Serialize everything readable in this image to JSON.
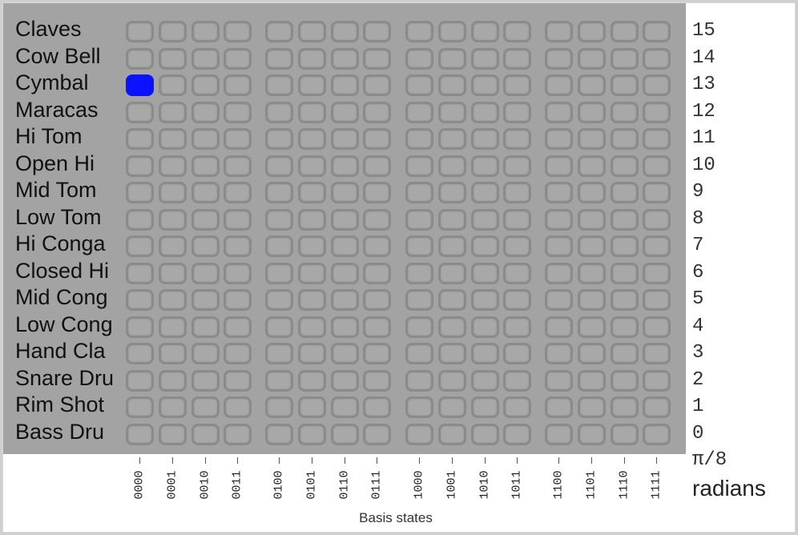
{
  "instruments": [
    "Claves",
    "Cow Bell",
    "Cymbal",
    "Maracas",
    "Hi Tom",
    "Open Hi",
    "Mid Tom",
    "Low Tom",
    "Hi Conga",
    "Closed Hi",
    "Mid Cong",
    "Low Cong",
    "Hand Cla",
    "Snare Dru",
    "Rim Shot",
    "Bass Dru"
  ],
  "row_values": [
    "15",
    "14",
    "13",
    "12",
    "11",
    "10",
    "9",
    "8",
    "7",
    "6",
    "5",
    "4",
    "3",
    "2",
    "1",
    "0"
  ],
  "basis_states": [
    "0000",
    "0001",
    "0010",
    "0011",
    "0100",
    "0101",
    "0110",
    "0111",
    "1000",
    "1001",
    "1010",
    "1011",
    "1100",
    "1101",
    "1110",
    "1111"
  ],
  "active_cells": [
    {
      "row": 2,
      "col": 0
    }
  ],
  "pi_fraction": "π/8",
  "units": "radians",
  "x_axis_title": "Basis states",
  "colors": {
    "active": "#0a12ff",
    "panel": "#a3a3a3",
    "cell_border": "#8b8b8b"
  }
}
